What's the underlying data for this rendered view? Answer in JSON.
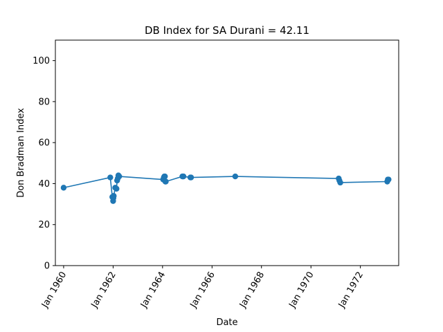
{
  "chart_data": {
    "type": "line",
    "title": "DB Index for SA Durani = 42.11",
    "xlabel": "Date",
    "ylabel": "Don Bradman Index",
    "xlim": [
      "1959-09-01",
      "1973-07-20"
    ],
    "ylim": [
      0,
      110
    ],
    "x_ticks": [
      "1960-01-01",
      "1962-01-01",
      "1964-01-01",
      "1966-01-01",
      "1968-01-01",
      "1970-01-01",
      "1972-01-01"
    ],
    "x_tick_labels": [
      "Jan 1960",
      "Jan 1962",
      "Jan 1964",
      "Jan 1966",
      "Jan 1968",
      "Jan 1970",
      "Jan 1972"
    ],
    "y_ticks": [
      0,
      20,
      40,
      60,
      80,
      100
    ],
    "y_tick_labels": [
      "0",
      "20",
      "40",
      "60",
      "80",
      "100"
    ],
    "grid": false,
    "line_color": "#1f77b4",
    "series": [
      {
        "x": [
          "1960-01-01",
          "1961-11-20",
          "1961-12-20",
          "1962-01-01",
          "1962-01-05",
          "1962-01-10",
          "1962-02-01",
          "1962-02-20",
          "1962-03-01",
          "1962-03-10",
          "1962-03-20",
          "1962-04-01",
          "1964-01-10",
          "1964-01-20",
          "1964-01-28",
          "1964-02-05",
          "1964-02-12",
          "1964-02-18",
          "1964-10-20",
          "1964-10-28",
          "1964-11-05",
          "1965-02-15",
          "1965-02-25",
          "1966-12-10",
          "1971-02-15",
          "1971-02-25",
          "1971-03-10",
          "1973-02-01",
          "1973-02-10",
          "1973-02-20"
        ],
        "y": [
          38,
          43,
          33.5,
          31.5,
          33,
          34,
          38,
          37.5,
          41.5,
          42.5,
          44,
          43.5,
          42,
          43,
          43.5,
          43.5,
          41,
          41,
          43.5,
          43.5,
          43.5,
          43,
          43,
          43.5,
          42.5,
          41.5,
          40.5,
          41,
          42,
          42
        ]
      }
    ]
  }
}
